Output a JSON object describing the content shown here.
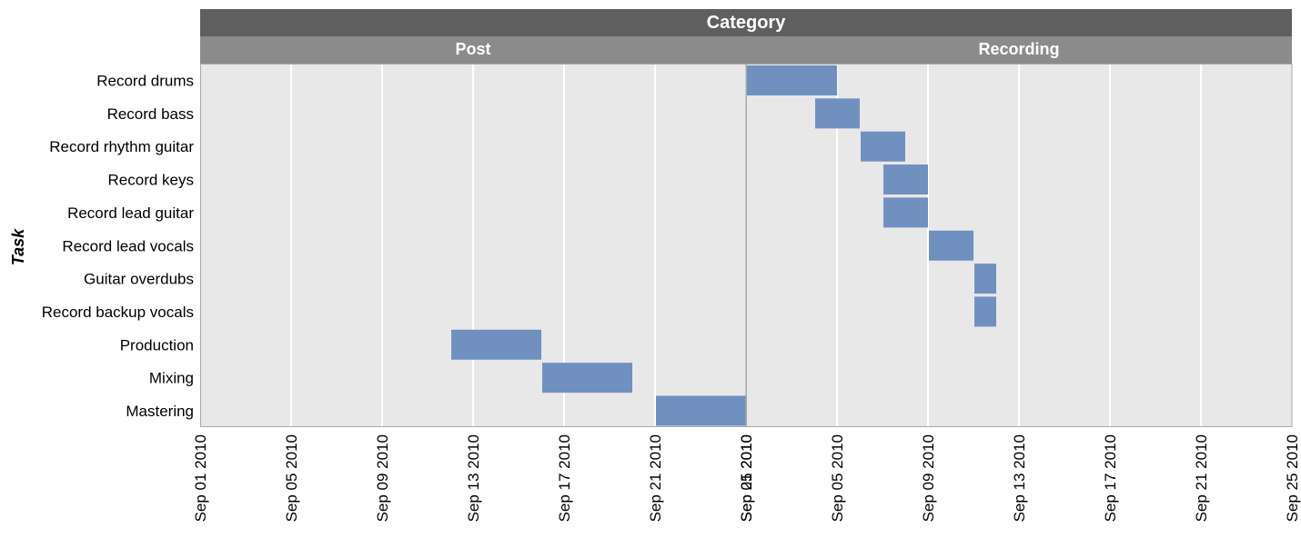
{
  "chart_data": {
    "type": "gantt",
    "facet_title": "Category",
    "ylabel": "Task",
    "tasks": [
      "Record drums",
      "Record bass",
      "Record rhythm guitar",
      "Record keys",
      "Record lead guitar",
      "Record lead vocals",
      "Guitar overdubs",
      "Record backup vocals",
      "Production",
      "Mixing",
      "Mastering"
    ],
    "panels": [
      {
        "name": "Post",
        "x_range": [
          "2010-09-01",
          "2010-09-25"
        ],
        "tick_labels": [
          "Sep 01 2010",
          "Sep 05 2010",
          "Sep 09 2010",
          "Sep 13 2010",
          "Sep 17 2010",
          "Sep 21 2010",
          "Sep 25 2010"
        ],
        "tick_dates": [
          "2010-09-01",
          "2010-09-05",
          "2010-09-09",
          "2010-09-13",
          "2010-09-17",
          "2010-09-21",
          "2010-09-25"
        ],
        "bars": [
          {
            "task": "Production",
            "start": "2010-09-12",
            "end": "2010-09-16"
          },
          {
            "task": "Mixing",
            "start": "2010-09-16",
            "end": "2010-09-20"
          },
          {
            "task": "Mastering",
            "start": "2010-09-21",
            "end": "2010-09-25"
          }
        ]
      },
      {
        "name": "Recording",
        "x_range": [
          "2010-09-01",
          "2010-09-25"
        ],
        "tick_labels": [
          "Sep 01 2010",
          "Sep 05 2010",
          "Sep 09 2010",
          "Sep 13 2010",
          "Sep 17 2010",
          "Sep 21 2010",
          "Sep 25 2010"
        ],
        "tick_dates": [
          "2010-09-01",
          "2010-09-05",
          "2010-09-09",
          "2010-09-13",
          "2010-09-17",
          "2010-09-21",
          "2010-09-25"
        ],
        "bars": [
          {
            "task": "Record drums",
            "start": "2010-09-01",
            "end": "2010-09-05"
          },
          {
            "task": "Record bass",
            "start": "2010-09-04",
            "end": "2010-09-06"
          },
          {
            "task": "Record rhythm guitar",
            "start": "2010-09-06",
            "end": "2010-09-08"
          },
          {
            "task": "Record keys",
            "start": "2010-09-07",
            "end": "2010-09-09"
          },
          {
            "task": "Record lead guitar",
            "start": "2010-09-07",
            "end": "2010-09-09"
          },
          {
            "task": "Record lead vocals",
            "start": "2010-09-09",
            "end": "2010-09-11"
          },
          {
            "task": "Guitar overdubs",
            "start": "2010-09-11",
            "end": "2010-09-12"
          },
          {
            "task": "Record backup vocals",
            "start": "2010-09-11",
            "end": "2010-09-12"
          }
        ]
      }
    ],
    "colors": {
      "bar": "#7090c0",
      "panel_background": "#e8e8e8",
      "grid": "#ffffff",
      "facet_header": "#5f5f5f",
      "panel_header": "#8b8b8b",
      "header_text": "#ffffff"
    },
    "grid": true
  }
}
